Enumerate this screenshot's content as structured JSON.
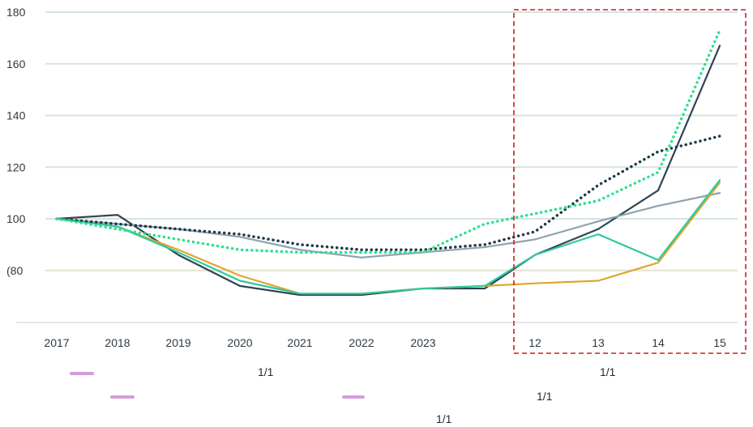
{
  "chart_data": {
    "type": "line",
    "title": "",
    "xlabel": "",
    "ylabel": "",
    "ylim": [
      60,
      180
    ],
    "yticks": [
      80,
      100,
      120,
      140,
      160,
      180
    ],
    "ytick_partial": "(80",
    "categories": [
      "2017",
      "2018",
      "2019",
      "2020",
      "2021",
      "2022",
      "2023",
      "",
      "12",
      "13",
      "14",
      "15"
    ],
    "grid": true,
    "highlight_region": {
      "from_category": "12",
      "to_category": "15",
      "style": "dashed",
      "color": "#c81e1e"
    },
    "series": [
      {
        "color": "#2e4453",
        "style": "solid",
        "values": [
          100,
          101.5,
          86,
          74,
          70.5,
          70.5,
          73,
          73,
          86,
          96,
          111,
          167
        ]
      },
      {
        "color": "#8fa3ad",
        "style": "solid",
        "values": [
          100,
          98,
          96,
          93,
          88,
          85,
          87,
          89,
          92,
          99,
          105,
          110
        ]
      },
      {
        "color": "#e0a52b",
        "style": "solid",
        "values": [
          100,
          97,
          88,
          78,
          71,
          71,
          73,
          74,
          75,
          76,
          83,
          114
        ]
      },
      {
        "color": "#2ec9a0",
        "style": "solid",
        "values": [
          100,
          97,
          87,
          76,
          71,
          71,
          73,
          74,
          86,
          94,
          84,
          115
        ]
      },
      {
        "color": "#1f3a4a",
        "style": "dotted",
        "values": [
          100,
          98,
          96,
          94,
          90,
          88,
          88,
          90,
          95,
          113,
          126,
          132
        ]
      },
      {
        "color": "#2ee08f",
        "style": "dotted",
        "values": [
          100,
          96,
          92,
          88,
          87,
          87,
          87,
          98,
          102,
          107,
          118,
          173
        ]
      }
    ]
  },
  "footer": {
    "page_labels": [
      "1/1",
      "1/1",
      "1/1",
      "1/1"
    ]
  },
  "legend_colors": [
    "#b04fc0",
    "#b04fc0",
    "#b04fc0"
  ]
}
